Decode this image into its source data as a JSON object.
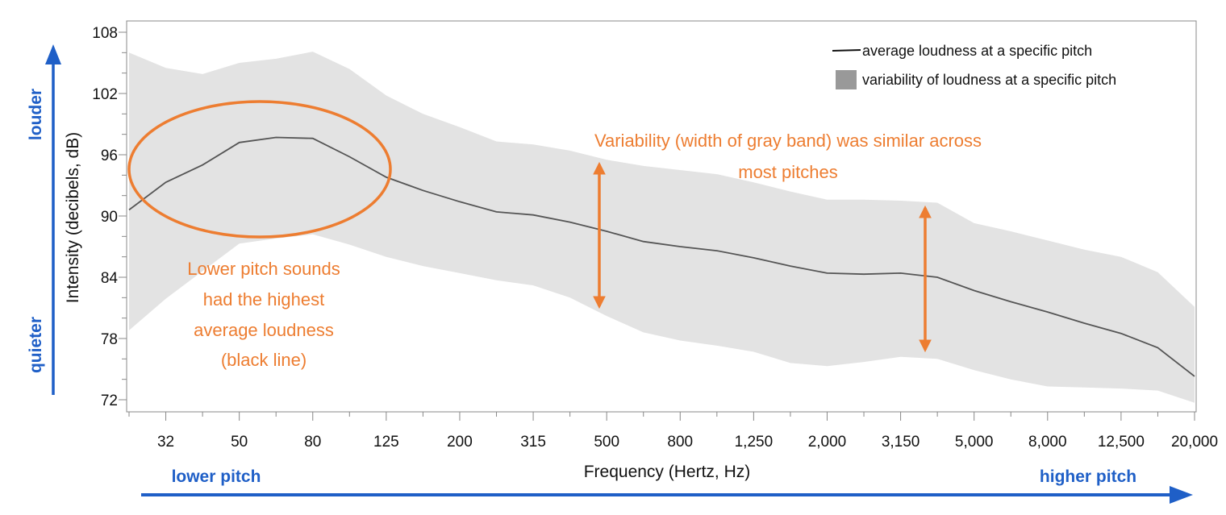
{
  "chart_data": {
    "type": "area",
    "x": [
      "25",
      "32",
      "40",
      "50",
      "63",
      "80",
      "100",
      "125",
      "160",
      "200",
      "250",
      "315",
      "400",
      "500",
      "630",
      "800",
      "1,000",
      "1,250",
      "1,600",
      "2,000",
      "2,500",
      "3,150",
      "4,000",
      "5,000",
      "6,300",
      "8,000",
      "10,000",
      "12,500",
      "16,000",
      "20,000"
    ],
    "x_tick_labels": [
      "32",
      "50",
      "80",
      "125",
      "200",
      "315",
      "500",
      "800",
      "1,250",
      "2,000",
      "3,150",
      "5,000",
      "8,000",
      "12,500",
      "20,000"
    ],
    "xlabel": "Frequency (Hertz, Hz)",
    "ylabel": "Intensity  (decibels, dB)",
    "ylim": [
      71,
      109
    ],
    "y_ticks": [
      72,
      78,
      84,
      90,
      96,
      102,
      108
    ],
    "series": [
      {
        "name": "average loudness at a specific pitch",
        "values": [
          90.6,
          93.3,
          95.0,
          97.2,
          97.7,
          97.6,
          95.8,
          93.8,
          92.5,
          91.4,
          90.4,
          90.1,
          89.4,
          88.5,
          87.5,
          87.0,
          86.6,
          85.9,
          85.1,
          84.4,
          84.3,
          84.4,
          84.0,
          82.7,
          81.6,
          80.6,
          79.5,
          78.5,
          77.1,
          74.3
        ]
      },
      {
        "name": "variability of loudness at a specific pitch",
        "upper": [
          106.0,
          104.5,
          103.9,
          105.0,
          105.4,
          106.1,
          104.4,
          101.8,
          100.0,
          98.7,
          97.3,
          97.0,
          96.4,
          95.5,
          94.9,
          94.5,
          94.1,
          93.3,
          92.4,
          91.6,
          91.6,
          91.5,
          91.3,
          89.3,
          88.5,
          87.6,
          86.7,
          86.0,
          84.5,
          81.1
        ],
        "lower": [
          78.8,
          81.9,
          84.6,
          87.3,
          87.8,
          88.2,
          87.2,
          86.0,
          85.1,
          84.4,
          83.7,
          83.2,
          82.0,
          80.2,
          78.6,
          77.8,
          77.3,
          76.7,
          75.6,
          75.3,
          75.7,
          76.2,
          76.0,
          74.9,
          74.0,
          73.3,
          73.2,
          73.1,
          72.9,
          71.7
        ]
      }
    ],
    "legend": {
      "position": "top-right",
      "line_label": "average loudness at a specific pitch",
      "band_label": "variability of loudness at a specific pitch"
    },
    "annotations": {
      "lower_pitch_note": [
        "Lower pitch sounds",
        "had the highest",
        "average loudness",
        "(black line)"
      ],
      "variability_note": [
        "Variability (width of gray band) was similar across",
        "most pitches"
      ]
    },
    "side_labels": {
      "louder": "louder",
      "quieter": "quieter",
      "lower_pitch": "lower pitch",
      "higher_pitch": "higher pitch"
    },
    "grid": false,
    "colors": {
      "band": "#E3E3E3",
      "line": "#555555",
      "legend_swatch": "#999999",
      "annotation": "#ED7D31",
      "side_arrows": "#1F5FC7",
      "axis": "#888888"
    }
  }
}
